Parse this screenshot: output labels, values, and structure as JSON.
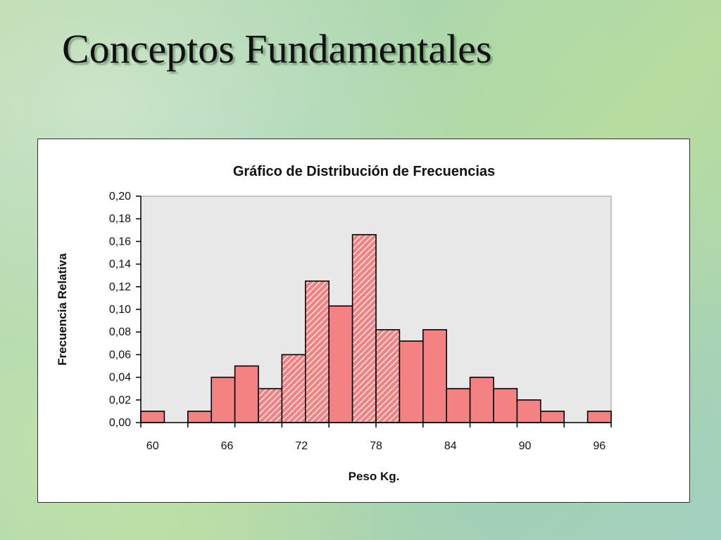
{
  "slide": {
    "title": "Conceptos Fundamentales"
  },
  "colors": {
    "bar_fill": "#f58282",
    "bar_stroke": "#000000",
    "plot_background": "#e8e8e8",
    "hatch_stripe": "#ffffff"
  },
  "chart_data": {
    "type": "bar",
    "title": "Gráfico de Distribución de Frecuencias",
    "xlabel": "Peso Kg.",
    "ylabel": "Frecuencia Relativa",
    "ylim": [
      0,
      0.2
    ],
    "yticks": [
      "0,00",
      "0,02",
      "0,04",
      "0,06",
      "0,08",
      "0,10",
      "0,12",
      "0,14",
      "0,16",
      "0,18",
      "0,20"
    ],
    "xticks": [
      "60",
      "66",
      "72",
      "78",
      "84",
      "90",
      "96"
    ],
    "categories": [
      "60",
      "62",
      "64",
      "66",
      "68",
      "70",
      "72",
      "74",
      "76",
      "78",
      "80",
      "82",
      "84",
      "86",
      "88",
      "90",
      "92",
      "94",
      "96",
      "98"
    ],
    "values": [
      0.01,
      0,
      0.01,
      0.04,
      0.05,
      0.03,
      0.06,
      0.125,
      0.103,
      0.166,
      0.082,
      0.072,
      0.082,
      0.03,
      0.04,
      0.03,
      0.02,
      0.01,
      0,
      0.01
    ],
    "hatched": [
      false,
      false,
      false,
      false,
      false,
      true,
      true,
      true,
      false,
      true,
      true,
      false,
      false,
      false,
      false,
      false,
      false,
      false,
      false,
      false
    ],
    "grid": false,
    "legend": "none"
  }
}
